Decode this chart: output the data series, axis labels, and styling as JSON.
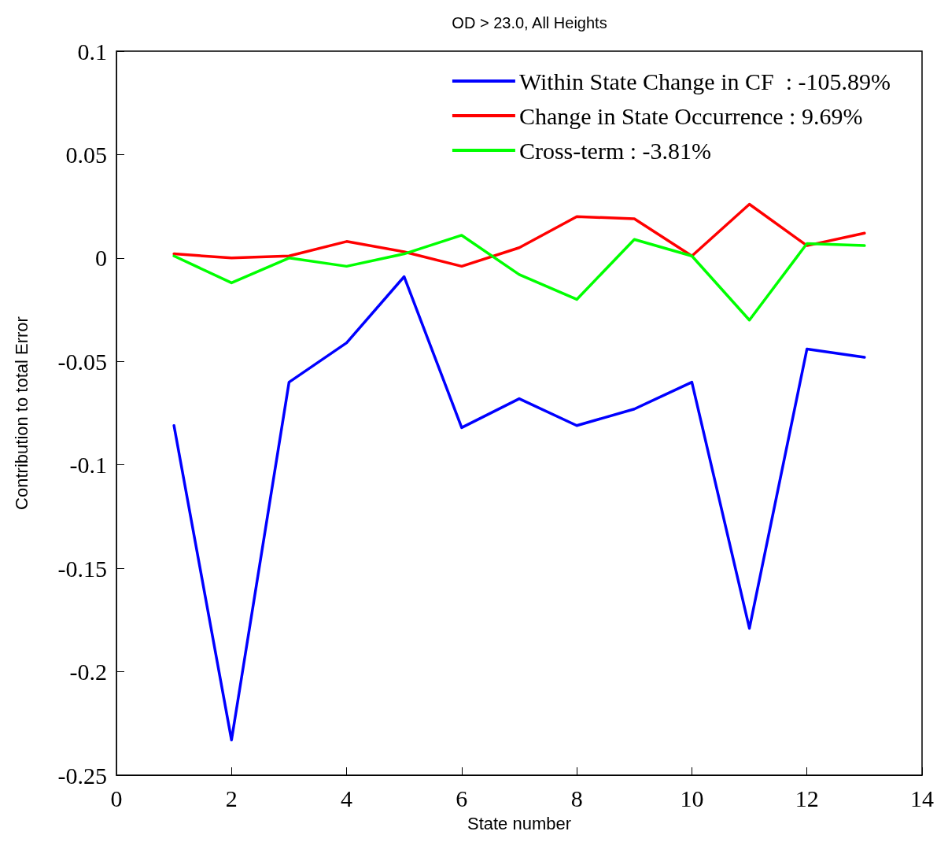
{
  "chart_data": {
    "type": "line",
    "title": "OD > 23.0, All Heights",
    "xlabel": "State number",
    "ylabel": "Contribution to total Error",
    "x": [
      1,
      2,
      3,
      4,
      5,
      6,
      7,
      8,
      9,
      10,
      11,
      12,
      13
    ],
    "series": [
      {
        "name": "Within State Change in CF  : -105.89%",
        "color": "#0000ff",
        "values": [
          -0.081,
          -0.233,
          -0.06,
          -0.041,
          -0.009,
          -0.082,
          -0.068,
          -0.081,
          -0.073,
          -0.06,
          -0.179,
          -0.044,
          -0.048
        ]
      },
      {
        "name": "Change in State Occurrence : 9.69%",
        "color": "#ff0000",
        "values": [
          0.002,
          0.0,
          0.001,
          0.008,
          0.003,
          -0.004,
          0.005,
          0.02,
          0.019,
          0.001,
          0.026,
          0.006,
          0.012
        ]
      },
      {
        "name": "Cross-term : -3.81%",
        "color": "#00ff00",
        "values": [
          0.001,
          -0.012,
          0.0,
          -0.004,
          0.002,
          0.011,
          -0.008,
          -0.02,
          0.009,
          0.001,
          -0.03,
          0.007,
          0.006
        ]
      }
    ],
    "xlim": [
      0,
      14
    ],
    "xticks": [
      0,
      2,
      4,
      6,
      8,
      10,
      12,
      14
    ],
    "ylim": [
      -0.25,
      0.1
    ],
    "yticks": [
      -0.25,
      -0.2,
      -0.15,
      -0.1,
      -0.05,
      0,
      0.05,
      0.1
    ],
    "grid": false,
    "legend": "top right",
    "line_style": "solid"
  }
}
